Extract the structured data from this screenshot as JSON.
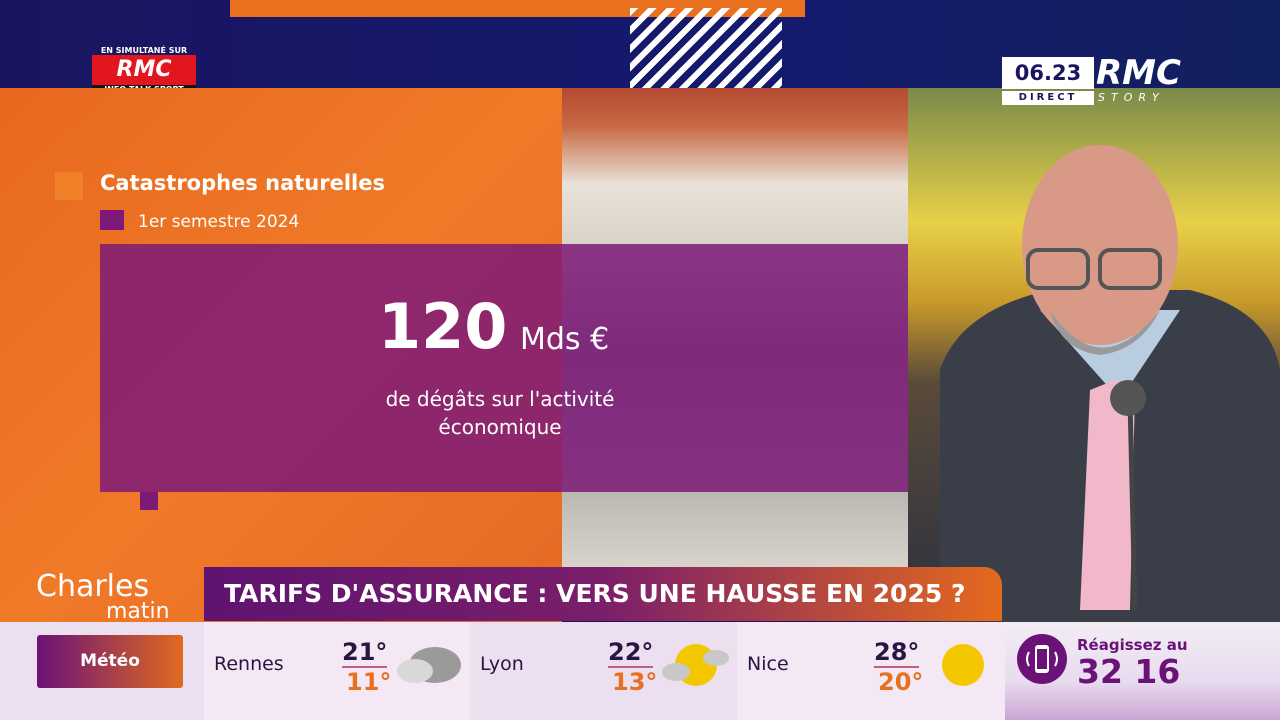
{
  "network": {
    "simulcast_top": "EN SIMULTANÉ SUR",
    "simulcast_logo": "RMC",
    "simulcast_bottom": "INFO TALK SPORT",
    "clock": "06.23",
    "live": "DIRECT",
    "channel": "RMC",
    "channel_sub": "STORY"
  },
  "graphic": {
    "title": "Catastrophes naturelles",
    "period": "1er semestre 2024",
    "value": "120",
    "unit": "Mds €",
    "description": "de dégâts sur l'activité économique",
    "colors": {
      "orange": "#e8701e",
      "purple": "#7d1978"
    }
  },
  "show": {
    "name": "Charles",
    "name_sub": "matin"
  },
  "headline": "TARIFS D'ASSURANCE : VERS UNE HAUSSE EN 2025 ?",
  "weather": {
    "label": "Météo",
    "cities": [
      {
        "name": "Rennes",
        "high": "21°",
        "low": "11°",
        "icon": "cloud-icon"
      },
      {
        "name": "Lyon",
        "high": "22°",
        "low": "13°",
        "icon": "sun-cloud-icon"
      },
      {
        "name": "Nice",
        "high": "28°",
        "low": "20°",
        "icon": "sun-icon"
      }
    ]
  },
  "react": {
    "label": "Réagissez au",
    "number": "32 16",
    "icon": "phone-icon"
  }
}
